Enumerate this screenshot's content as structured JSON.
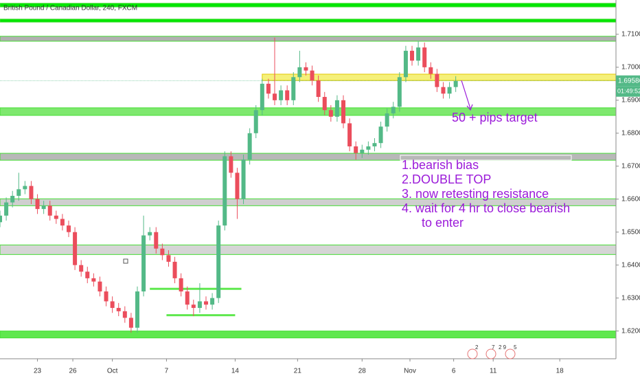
{
  "chart_data": {
    "type": "candlestick",
    "title": "British Pound / Canadian Dollar, 240, FXCM",
    "up_color": "#53b987",
    "down_color": "#eb4d5c",
    "xlim": [
      0,
      296
    ],
    "ylim": [
      1.612,
      1.7204
    ],
    "xticks": [
      {
        "value": 18,
        "label": "23"
      },
      {
        "value": 35,
        "label": "26"
      },
      {
        "value": 54,
        "label": "Oct"
      },
      {
        "value": 80,
        "label": "7"
      },
      {
        "value": 113,
        "label": "14"
      },
      {
        "value": 143,
        "label": "21"
      },
      {
        "value": 174,
        "label": "28"
      },
      {
        "value": 197,
        "label": "Nov"
      },
      {
        "value": 218,
        "label": "6"
      },
      {
        "value": 237,
        "label": "11"
      },
      {
        "value": 269,
        "label": "18"
      }
    ],
    "yticks": [
      {
        "value": 1.62,
        "label": "1.62000"
      },
      {
        "value": 1.63,
        "label": "1.63000"
      },
      {
        "value": 1.64,
        "label": "1.64000"
      },
      {
        "value": 1.65,
        "label": "1.65000"
      },
      {
        "value": 1.66,
        "label": "1.66000"
      },
      {
        "value": 1.67,
        "label": "1.67000"
      },
      {
        "value": 1.68,
        "label": "1.68000"
      },
      {
        "value": 1.69,
        "label": "1.69000"
      },
      {
        "value": 1.7,
        "label": "1.70000"
      },
      {
        "value": 1.71,
        "label": "1.71000"
      }
    ],
    "x": [
      0,
      3,
      6,
      9,
      12,
      15,
      18,
      21,
      24,
      27,
      30,
      33,
      36,
      39,
      42,
      45,
      48,
      51,
      54,
      57,
      60,
      63,
      66,
      69,
      72,
      75,
      78,
      81,
      84,
      87,
      90,
      93,
      96,
      99,
      102,
      105,
      108,
      111,
      114,
      117,
      120,
      123,
      126,
      129,
      132,
      135,
      138,
      141,
      144,
      147,
      150,
      153,
      156,
      159,
      162,
      165,
      168,
      171,
      174,
      177,
      180,
      183,
      186,
      189,
      192,
      195,
      198,
      201,
      204,
      207,
      210,
      213,
      216,
      219
    ],
    "open": [
      1.653,
      1.655,
      1.659,
      1.661,
      1.663,
      1.664,
      1.66,
      1.657,
      1.658,
      1.655,
      1.654,
      1.652,
      1.65,
      1.64,
      1.638,
      1.636,
      1.635,
      1.632,
      1.629,
      1.627,
      1.626,
      1.624,
      1.621,
      1.632,
      1.649,
      1.65,
      1.645,
      1.643,
      1.641,
      1.636,
      1.632,
      1.628,
      1.627,
      1.629,
      1.628,
      1.63,
      1.652,
      1.673,
      1.668,
      1.66,
      1.672,
      1.68,
      1.687,
      1.695,
      1.692,
      1.69,
      1.693,
      1.69,
      1.697,
      1.7,
      1.699,
      1.696,
      1.691,
      1.687,
      1.685,
      1.69,
      1.683,
      1.676,
      1.674,
      1.675,
      1.676,
      1.677,
      1.682,
      1.686,
      1.688,
      1.697,
      1.705,
      1.702,
      1.706,
      1.7,
      1.698,
      1.694,
      1.692,
      1.694
    ],
    "high": [
      1.6565,
      1.6605,
      1.6625,
      1.668,
      1.6655,
      1.6655,
      1.6615,
      1.6595,
      1.6595,
      1.6565,
      1.6555,
      1.6535,
      1.6515,
      1.6415,
      1.6395,
      1.6375,
      1.6365,
      1.6335,
      1.6305,
      1.6285,
      1.6275,
      1.6255,
      1.6335,
      1.655,
      1.6515,
      1.6515,
      1.6465,
      1.6445,
      1.6425,
      1.6375,
      1.6335,
      1.6295,
      1.6345,
      1.6305,
      1.6315,
      1.6535,
      1.6745,
      1.6745,
      1.6695,
      1.6735,
      1.6815,
      1.6885,
      1.6965,
      1.6965,
      1.709,
      1.6945,
      1.6945,
      1.6985,
      1.705,
      1.7015,
      1.7005,
      1.6975,
      1.6925,
      1.6885,
      1.6915,
      1.6915,
      1.6845,
      1.6775,
      1.6765,
      1.6775,
      1.6785,
      1.6835,
      1.6875,
      1.6895,
      1.6985,
      1.7065,
      1.7065,
      1.708,
      1.7075,
      1.7015,
      1.6995,
      1.6955,
      1.6955,
      1.6973
    ],
    "low": [
      1.6515,
      1.6535,
      1.6575,
      1.6595,
      1.6615,
      1.6585,
      1.6555,
      1.6555,
      1.6535,
      1.6525,
      1.6505,
      1.6485,
      1.6385,
      1.6365,
      1.6345,
      1.6335,
      1.6305,
      1.6275,
      1.6255,
      1.6245,
      1.6225,
      1.6195,
      1.6195,
      1.6305,
      1.6475,
      1.6435,
      1.6415,
      1.6395,
      1.6345,
      1.6305,
      1.6265,
      1.6245,
      1.6255,
      1.6265,
      1.6265,
      1.6285,
      1.6505,
      1.6665,
      1.654,
      1.6585,
      1.6705,
      1.6785,
      1.6855,
      1.6905,
      1.6885,
      1.6885,
      1.6885,
      1.6885,
      1.6955,
      1.6975,
      1.6945,
      1.6895,
      1.6855,
      1.6835,
      1.6835,
      1.6815,
      1.6745,
      1.672,
      1.6725,
      1.6735,
      1.6745,
      1.6755,
      1.6805,
      1.6845,
      1.6865,
      1.6955,
      1.7005,
      1.7005,
      1.6985,
      1.6965,
      1.6925,
      1.6905,
      1.6905,
      1.6925
    ],
    "close": [
      1.655,
      1.659,
      1.661,
      1.663,
      1.664,
      1.66,
      1.657,
      1.658,
      1.655,
      1.654,
      1.652,
      1.65,
      1.64,
      1.638,
      1.636,
      1.635,
      1.632,
      1.629,
      1.627,
      1.626,
      1.624,
      1.621,
      1.632,
      1.649,
      1.65,
      1.645,
      1.643,
      1.641,
      1.636,
      1.632,
      1.628,
      1.627,
      1.629,
      1.628,
      1.63,
      1.652,
      1.673,
      1.668,
      1.66,
      1.672,
      1.68,
      1.687,
      1.695,
      1.692,
      1.69,
      1.693,
      1.69,
      1.697,
      1.7,
      1.699,
      1.696,
      1.691,
      1.687,
      1.685,
      1.69,
      1.683,
      1.676,
      1.674,
      1.675,
      1.676,
      1.677,
      1.682,
      1.686,
      1.688,
      1.697,
      1.705,
      1.702,
      1.706,
      1.7,
      1.698,
      1.694,
      1.692,
      1.694,
      1.6958
    ],
    "zones": [
      {
        "top": 1.7194,
        "bottom": 1.7183,
        "color": "#00e600"
      },
      {
        "top": 1.7146,
        "bottom": 1.7137,
        "color": "#00e600"
      },
      {
        "top": 1.7094,
        "bottom": 1.7079,
        "color": "#b0b0b0"
      },
      {
        "top": 1.6979,
        "bottom": 1.696,
        "color": "#f5f07a",
        "x_start": 126
      },
      {
        "top": 1.6877,
        "bottom": 1.6854,
        "color": "#7ee86e"
      },
      {
        "top": 1.6739,
        "bottom": 1.6718,
        "color": "#b8b8b8"
      },
      {
        "top": 1.6601,
        "bottom": 1.658,
        "color": "#cfcfcf"
      },
      {
        "top": 1.6461,
        "bottom": 1.6432,
        "color": "#d5d5d5"
      },
      {
        "top": 1.62,
        "bottom": 1.6179,
        "color": "#5fe84e"
      }
    ],
    "levels": [
      {
        "price": 1.6328,
        "x_start": 72,
        "x_end": 116
      },
      {
        "price": 1.6248,
        "x_start": 80,
        "x_end": 113
      }
    ],
    "last_price": 1.69586,
    "countdown": "01:49:52",
    "annotations": [
      "50 + pips target",
      "1.bearish bias",
      "2.DOUBLE TOP",
      "3. now retesting resistance",
      "4. wait for 4 hr to close bearish",
      "to enter"
    ],
    "event_labels": [
      "2",
      "7",
      "2 9",
      "5"
    ]
  }
}
